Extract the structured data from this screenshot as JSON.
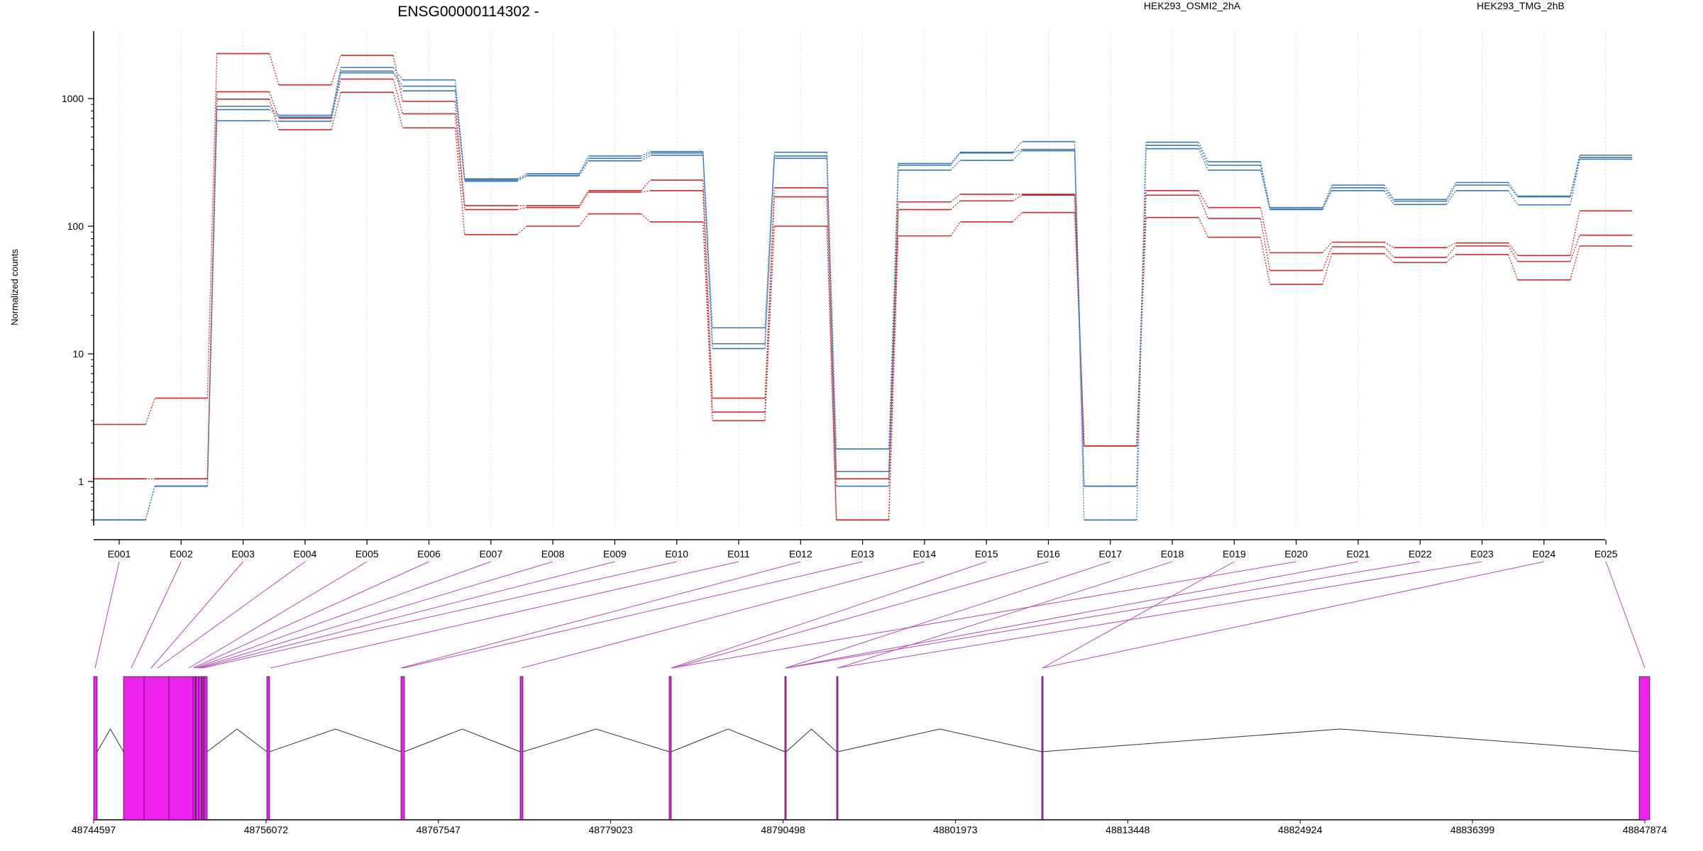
{
  "chart_data": {
    "type": "line",
    "title": "ENSG00000114302 -",
    "ylabel": "Normalized counts",
    "yscale": "log",
    "ylim": [
      0.5,
      3000
    ],
    "yticks": [
      1,
      10,
      100,
      1000
    ],
    "ytick_labels": [
      "1",
      "10",
      "100",
      "1000"
    ],
    "categories": [
      "E001",
      "E002",
      "E003",
      "E004",
      "E005",
      "E006",
      "E007",
      "E008",
      "E009",
      "E010",
      "E011",
      "E012",
      "E013",
      "E014",
      "E015",
      "E016",
      "E017",
      "E018",
      "E019",
      "E020",
      "E021",
      "E022",
      "E023",
      "E024",
      "E025"
    ],
    "legend": [
      {
        "label": "HEK293_OSMI2_2hA",
        "color": "#d62728"
      },
      {
        "label": "HEK293_TMG_2hB",
        "color": "#3a78b5"
      }
    ],
    "series": [
      {
        "group": "HEK293_OSMI2_2hA",
        "color": "#d62728",
        "values": [
          2.8,
          4.5,
          2250,
          1280,
          2180,
          950,
          145,
          145,
          190,
          230,
          4.5,
          200,
          0.5,
          155,
          178,
          178,
          1.9,
          190,
          140,
          62,
          75,
          68,
          74,
          59,
          132
        ]
      },
      {
        "group": "HEK293_OSMI2_2hA",
        "color": "#d62728",
        "values": [
          1.05,
          1.05,
          1130,
          700,
          1420,
          760,
          135,
          140,
          185,
          190,
          3.5,
          170,
          1.05,
          135,
          158,
          175,
          1.9,
          175,
          115,
          45,
          69,
          57,
          70,
          53,
          85
        ]
      },
      {
        "group": "HEK293_OSMI2_2hA",
        "color": "#d62728",
        "values": [
          1.05,
          1.05,
          990,
          570,
          1120,
          590,
          86,
          100,
          125,
          108,
          3.0,
          100,
          0.5,
          84,
          108,
          128,
          1.9,
          117,
          82,
          35,
          61,
          52,
          60,
          38,
          70
        ]
      },
      {
        "group": "HEK293_TMG_2hB",
        "color": "#3a78b5",
        "values": [
          0.5,
          0.92,
          870,
          740,
          1750,
          1400,
          235,
          258,
          355,
          385,
          16,
          380,
          1.8,
          310,
          380,
          460,
          0.92,
          455,
          320,
          140,
          210,
          162,
          220,
          172,
          360
        ]
      },
      {
        "group": "HEK293_TMG_2hB",
        "color": "#3a78b5",
        "values": [
          0.5,
          0.92,
          820,
          715,
          1640,
          1250,
          230,
          250,
          340,
          375,
          12,
          355,
          1.2,
          300,
          375,
          400,
          0.92,
          430,
          300,
          136,
          200,
          157,
          210,
          170,
          345
        ]
      },
      {
        "group": "HEK293_TMG_2hB",
        "color": "#3a78b5",
        "values": [
          0.5,
          0.92,
          670,
          665,
          1590,
          1150,
          225,
          248,
          325,
          360,
          11,
          340,
          0.92,
          275,
          328,
          390,
          0.5,
          405,
          275,
          135,
          190,
          148,
          190,
          147,
          335
        ]
      }
    ],
    "genomic_axis": {
      "tick_labels": [
        "48744597",
        "48756072",
        "48767547",
        "48779023",
        "48790498",
        "48801973",
        "48813448",
        "48824924",
        "48836399",
        "48847874"
      ],
      "range": [
        48744597,
        48847874
      ],
      "exon_color": "#ee22ee",
      "exon_starts": [
        48744620,
        48746700,
        48747000,
        48747200,
        48748200,
        48749200,
        48751000,
        48751500,
        48751800,
        48752200,
        48756240,
        48765050,
        48765400,
        48773050,
        48783050,
        48790500,
        48794000,
        48807850,
        48846900
      ]
    }
  }
}
